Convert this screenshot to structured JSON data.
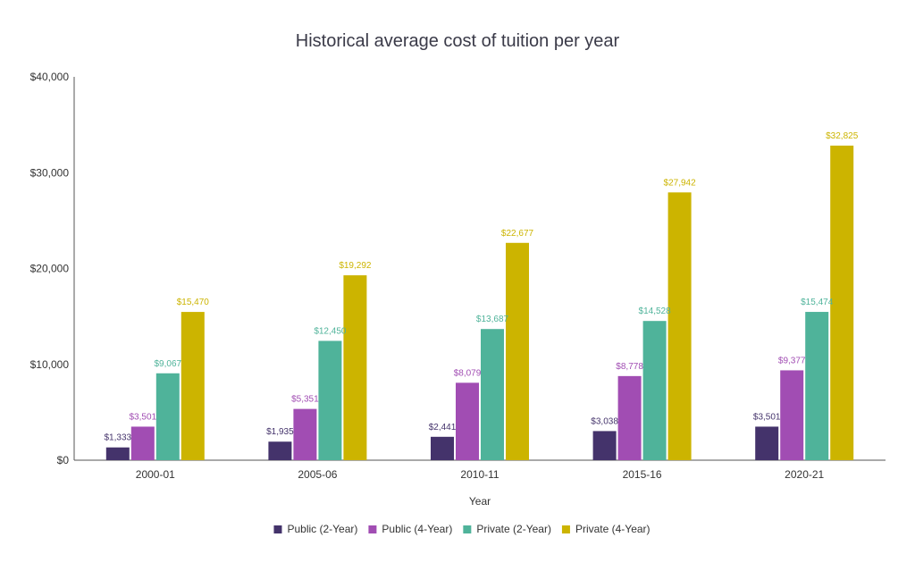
{
  "chart_data": {
    "type": "bar",
    "title": "Historical average cost of tuition per year",
    "xlabel": "Year",
    "ylabel": "",
    "categories": [
      "2000-01",
      "2005-06",
      "2010-11",
      "2015-16",
      "2020-21"
    ],
    "ylim": [
      0,
      40000
    ],
    "yticks": [
      0,
      10000,
      20000,
      30000,
      40000
    ],
    "ytick_labels": [
      "$0",
      "$10,000",
      "$20,000",
      "$30,000",
      "$40,000"
    ],
    "grid": false,
    "legend_position": "bottom-center",
    "series": [
      {
        "name": "Public (2-Year)",
        "color": "#44336b",
        "values": [
          1333,
          1935,
          2441,
          3038,
          3501
        ],
        "labels": [
          "$1,333",
          "$1,935",
          "$2,441",
          "$3,038",
          "$3,501"
        ]
      },
      {
        "name": "Public (4-Year)",
        "color": "#a14db3",
        "values": [
          3501,
          5351,
          8079,
          8778,
          9377
        ],
        "labels": [
          "$3,501",
          "$5,351",
          "$8,079",
          "$8,778",
          "$9,377"
        ]
      },
      {
        "name": "Private (2-Year)",
        "color": "#4fb39a",
        "values": [
          9067,
          12450,
          13687,
          14528,
          15474
        ],
        "labels": [
          "$9,067",
          "$12,450",
          "$13,687",
          "$14,528",
          "$15,474"
        ]
      },
      {
        "name": "Private (4-Year)",
        "color": "#ccb400",
        "values": [
          15470,
          19292,
          22677,
          27942,
          32825
        ],
        "labels": [
          "$15,470",
          "$19,292",
          "$22,677",
          "$27,942",
          "$32,825"
        ]
      }
    ]
  }
}
